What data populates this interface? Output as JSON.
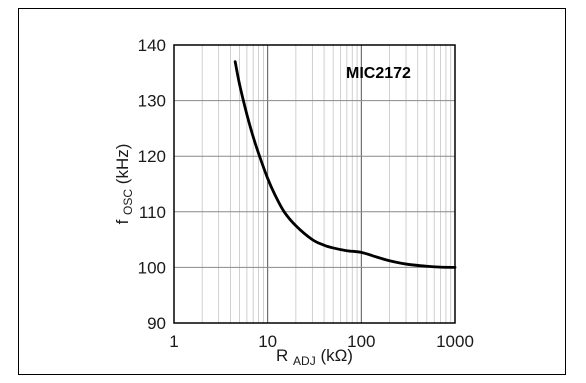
{
  "chart_data": {
    "type": "line",
    "tag": "MIC2172",
    "xlabel": {
      "main": "R",
      "sub": "ADJ",
      "unit": " (kΩ)"
    },
    "ylabel": {
      "main": "f",
      "sub": "OSC",
      "unit": " (kHz)"
    },
    "xscale": "log",
    "xlim": [
      1,
      1000
    ],
    "ylim": [
      90,
      140
    ],
    "xticks": [
      {
        "value": 1,
        "label": "1"
      },
      {
        "value": 10,
        "label": "10"
      },
      {
        "value": 100,
        "label": "100"
      },
      {
        "value": 1000,
        "label": "1000"
      }
    ],
    "yticks": [
      {
        "value": 90,
        "label": "90"
      },
      {
        "value": 100,
        "label": "100"
      },
      {
        "value": 110,
        "label": "110"
      },
      {
        "value": 120,
        "label": "120"
      },
      {
        "value": 130,
        "label": "130"
      },
      {
        "value": 140,
        "label": "140"
      }
    ],
    "grid": true,
    "series": [
      {
        "color": "#000000",
        "x": [
          4.5,
          5,
          6,
          7,
          8,
          10,
          12,
          15,
          20,
          30,
          40,
          50,
          70,
          100,
          150,
          200,
          300,
          500,
          700,
          1000
        ],
        "y": [
          137,
          133,
          127.5,
          123.5,
          120.5,
          116,
          113,
          110,
          107.5,
          105,
          104,
          103.5,
          103,
          102.7,
          101.8,
          101.2,
          100.6,
          100.2,
          100.05,
          100
        ]
      }
    ]
  }
}
